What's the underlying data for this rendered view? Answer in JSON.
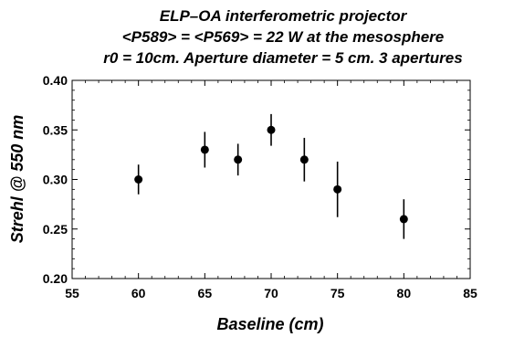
{
  "chart_data": {
    "type": "scatter",
    "title_lines": [
      "ELP–OA interferometric projector",
      "<P589> = <P569> = 22 W at the mesosphere",
      "r0 = 10cm. Aperture diameter = 5 cm. 3 apertures"
    ],
    "xlabel": "Baseline (cm)",
    "ylabel": "Strehl  @ 550 nm",
    "xlim": [
      55,
      85
    ],
    "ylim": [
      0.2,
      0.4
    ],
    "x_ticks": [
      "55",
      "60",
      "65",
      "70",
      "75",
      "80",
      "85"
    ],
    "y_ticks": [
      "0.20",
      "0.25",
      "0.30",
      "0.35",
      "0.40"
    ],
    "grid": false,
    "points": [
      {
        "x": 60.0,
        "y": 0.3,
        "err_low": 0.285,
        "err_high": 0.315
      },
      {
        "x": 65.0,
        "y": 0.33,
        "err_low": 0.312,
        "err_high": 0.348
      },
      {
        "x": 67.5,
        "y": 0.32,
        "err_low": 0.304,
        "err_high": 0.336
      },
      {
        "x": 70.0,
        "y": 0.35,
        "err_low": 0.334,
        "err_high": 0.366
      },
      {
        "x": 72.5,
        "y": 0.32,
        "err_low": 0.298,
        "err_high": 0.342
      },
      {
        "x": 75.0,
        "y": 0.29,
        "err_low": 0.262,
        "err_high": 0.318
      },
      {
        "x": 80.0,
        "y": 0.26,
        "err_low": 0.24,
        "err_high": 0.28
      }
    ],
    "marker_color": "#000000"
  }
}
